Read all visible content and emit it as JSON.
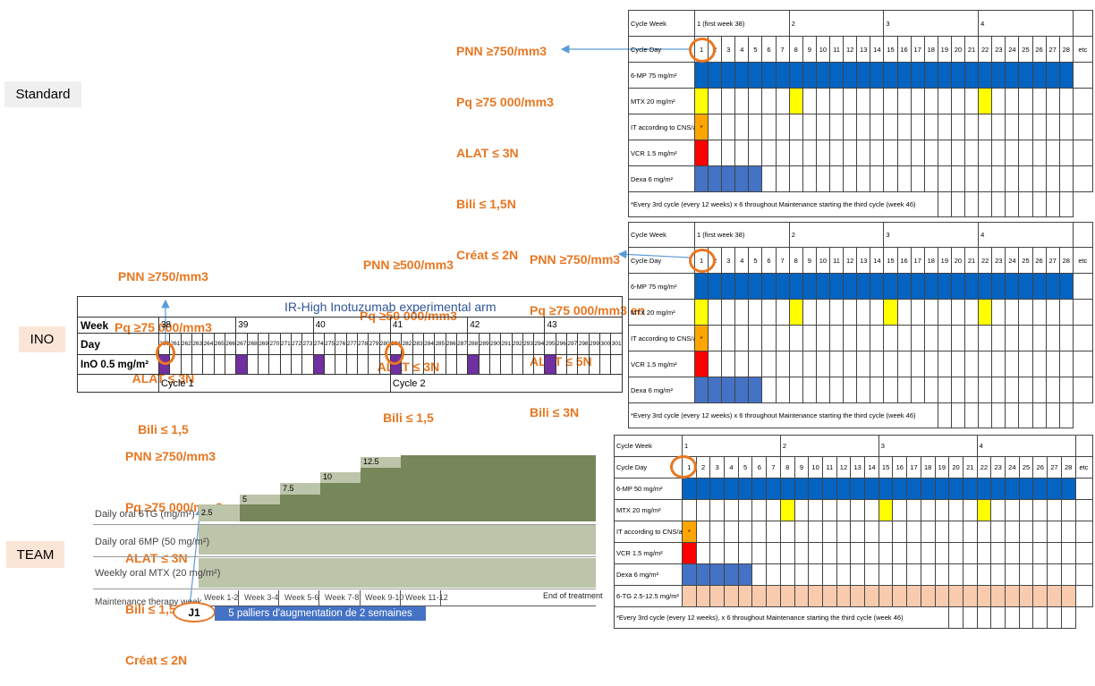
{
  "arms": {
    "standard": "Standard",
    "ino": "INO",
    "team": "TEAM"
  },
  "annotations": {
    "standard": [
      "PNN ≥750/mm3",
      "Pq ≥75 000/mm3",
      "ALAT ≤ 3N",
      "Bili ≤ 1,5N",
      "Créat ≤ 2N"
    ],
    "ino_left": [
      "PNN ≥750/mm3",
      "Pq ≥75 000/mm3",
      "ALAT ≤ 3N",
      "Bili ≤ 1,5"
    ],
    "ino_mid": [
      "PNN ≥500/mm3",
      "Pq ≥50 000/mm3",
      "ALAT ≤ 3N",
      "Bili ≤ 1,5"
    ],
    "ino_right": [
      "PNN ≥750/mm3",
      "Pq ≥75 000/mm3 en",
      "ALAT ≤ 5N",
      "Bili ≤ 3N"
    ],
    "team": [
      "PNN ≥750/mm3",
      "Pq ≥75 000/mm3",
      "ALAT ≤ 3N",
      "Bili ≤ 1,5N",
      "Créat ≤ 2N"
    ]
  },
  "schedule": {
    "cycle_week_label": "Cycle Week",
    "cycle_day_label": "Cycle Day",
    "weeks": [
      "1 (first week 38)",
      "2",
      "3",
      "4"
    ],
    "team_weeks": [
      "1",
      "2",
      "3",
      "4"
    ],
    "days": [
      "1",
      "2",
      "3",
      "4",
      "5",
      "6",
      "7",
      "8",
      "9",
      "10",
      "11",
      "12",
      "13",
      "14",
      "15",
      "16",
      "17",
      "18",
      "19",
      "20",
      "21",
      "22",
      "23",
      "24",
      "25",
      "26",
      "27",
      "28",
      "etc"
    ],
    "drugs_standard": [
      "6-MP 75 mg/m²",
      "MTX 20 mg/m²",
      "IT according to CNS/age",
      "VCR 1.5 mg/m²",
      "Dexa 6 mg/m²"
    ],
    "drugs_team": [
      "6-MP 50 mg/m²",
      "MTX 20 mg/m²",
      "IT according to CNS/age",
      "VCR 1.5 mg/m²",
      "Dexa 6 mg/m²",
      "6-TG 2.5-12.5 mg/m²"
    ],
    "it_mark": "*",
    "footnote": "*Every 3rd cycle (every 12 weeks) x 6 throughout Maintenance starting the third cycle (week 46)",
    "footnote_team": "*Every 3rd cycle (every 12 weeks), x 6 throughout Maintenance starting the third cycle (week 46)"
  },
  "ino_table": {
    "title": "IR-High Inotuzumab experimental arm",
    "week_label": "Week",
    "day_label": "Day",
    "drug_label": "InO 0.5 mg/m²",
    "weeks": [
      "38",
      "39",
      "40",
      "41",
      "42",
      "43"
    ],
    "days": [
      "260",
      "261",
      "262",
      "263",
      "264",
      "265",
      "266",
      "267",
      "268",
      "269",
      "270",
      "271",
      "272",
      "273",
      "274",
      "275",
      "276",
      "277",
      "278",
      "279",
      "280",
      "281",
      "282",
      "283",
      "284",
      "285",
      "286",
      "287",
      "288",
      "289",
      "290",
      "291",
      "292",
      "293",
      "294",
      "295",
      "296",
      "297",
      "298",
      "299",
      "300",
      "301"
    ],
    "cycles": [
      "Cycle 1",
      "Cycle 2"
    ]
  },
  "team_chart": {
    "steps": [
      "2.5",
      "5",
      "7.5",
      "10",
      "12.5"
    ],
    "rows": [
      "Daily oral 6TG (mg/m²)",
      "Daily oral 6MP (50 mg/m²)",
      "Weekly oral MTX (20 mg/m²)",
      "Maintenance therapy week"
    ],
    "week_labels": [
      "Week 1-2",
      "Week 3-4",
      "Week 5-6",
      "Week 7-8",
      "Week 9-10",
      "Week 11-12"
    ],
    "end_label": "End of treatment",
    "j1": "J1",
    "banner": "5 palliers d'augmentation de 2 semaines"
  },
  "colors": {
    "annotation": "#E87722",
    "blue": "#0563C1",
    "light_blue": "#4472C4",
    "yellow": "#FFFF00",
    "orange": "#FFA500",
    "red": "#FF0000",
    "purple": "#7030A0",
    "peach": "#F8CBAD",
    "team_dark": "#76875A",
    "team_light": "#BCC4AA"
  }
}
